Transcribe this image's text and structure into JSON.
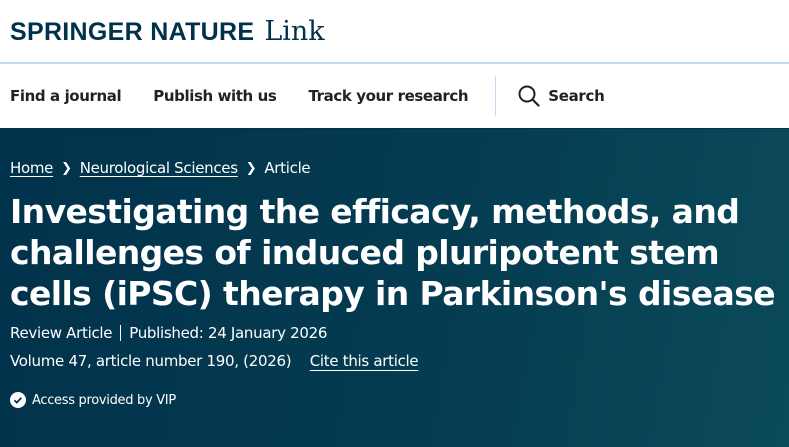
{
  "header": {
    "brand": "SPRINGER NATURE",
    "product": "Link"
  },
  "nav": {
    "items": [
      "Find a journal",
      "Publish with us",
      "Track your research"
    ],
    "search_label": "Search"
  },
  "breadcrumb": [
    "Home",
    "Neurological Sciences",
    "Article"
  ],
  "article": {
    "title": "Investigating the efficacy, methods, and challenges of induced pluripotent stem cells (iPSC) therapy in Parkinson's disease",
    "type": "Review Article",
    "published": "Published: 24 January 2026",
    "citation": "Volume 47, article number 190, (2026)",
    "cite_link": "Cite this article",
    "access": "Access provided by VIP"
  },
  "colors": {
    "brand": "#01324b",
    "hero_bg": "#053d52"
  }
}
